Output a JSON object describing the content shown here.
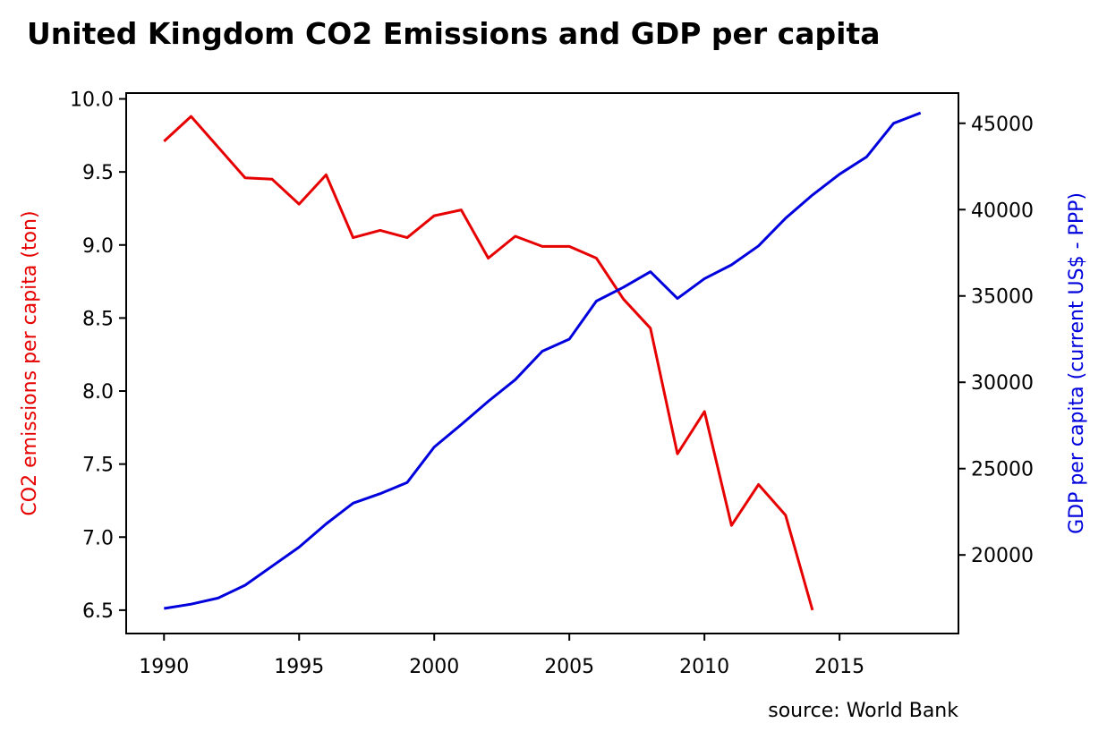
{
  "chart_data": {
    "type": "line",
    "title": "United Kingdom CO2 Emissions and GDP per capita",
    "xlabel": "",
    "source": "source: World Bank",
    "colors": {
      "co2": "#e60000",
      "gdp": "#0000dd"
    },
    "x_ticks": [
      1990,
      1995,
      2000,
      2005,
      2010,
      2015
    ],
    "xlim": [
      1988.6,
      2019.4
    ],
    "y_left": {
      "label": "CO2 emissions per capita (ton)",
      "ylim": [
        6.34,
        10.04
      ],
      "ticks": [
        "6.5",
        "7.0",
        "7.5",
        "8.0",
        "8.5",
        "9.0",
        "9.5",
        "10.0"
      ]
    },
    "y_right": {
      "label": "GDP per capita (current US$ - PPP)",
      "ylim": [
        15450,
        46750
      ],
      "ticks": [
        "20000",
        "25000",
        "30000",
        "35000",
        "40000",
        "45000"
      ]
    },
    "series": [
      {
        "axis": "left",
        "x": [
          1990,
          1991,
          1992,
          1993,
          1994,
          1995,
          1996,
          1997,
          1998,
          1999,
          2000,
          2001,
          2002,
          2003,
          2004,
          2005,
          2006,
          2007,
          2008,
          2009,
          2010,
          2011,
          2012,
          2013,
          2014
        ],
        "values": [
          9.71,
          9.88,
          9.67,
          9.46,
          9.45,
          9.28,
          9.48,
          9.05,
          9.1,
          9.05,
          9.2,
          9.24,
          8.91,
          9.06,
          8.99,
          8.99,
          8.91,
          8.63,
          8.43,
          7.57,
          7.86,
          7.08,
          7.36,
          7.15,
          6.5
        ]
      },
      {
        "axis": "right",
        "x": [
          1990,
          1991,
          1992,
          1993,
          1994,
          1995,
          1996,
          1997,
          1998,
          1999,
          2000,
          2001,
          2002,
          2003,
          2004,
          2005,
          2006,
          2007,
          2008,
          2009,
          2010,
          2011,
          2012,
          2013,
          2014,
          2015,
          2016,
          2017,
          2018
        ],
        "values": [
          16900,
          17150,
          17500,
          18250,
          19350,
          20450,
          21800,
          23000,
          23550,
          24200,
          26250,
          27550,
          28900,
          30150,
          31800,
          32500,
          34700,
          35500,
          36400,
          34850,
          36000,
          36800,
          37900,
          39500,
          40850,
          42050,
          43050,
          45000,
          45600
        ]
      }
    ]
  }
}
